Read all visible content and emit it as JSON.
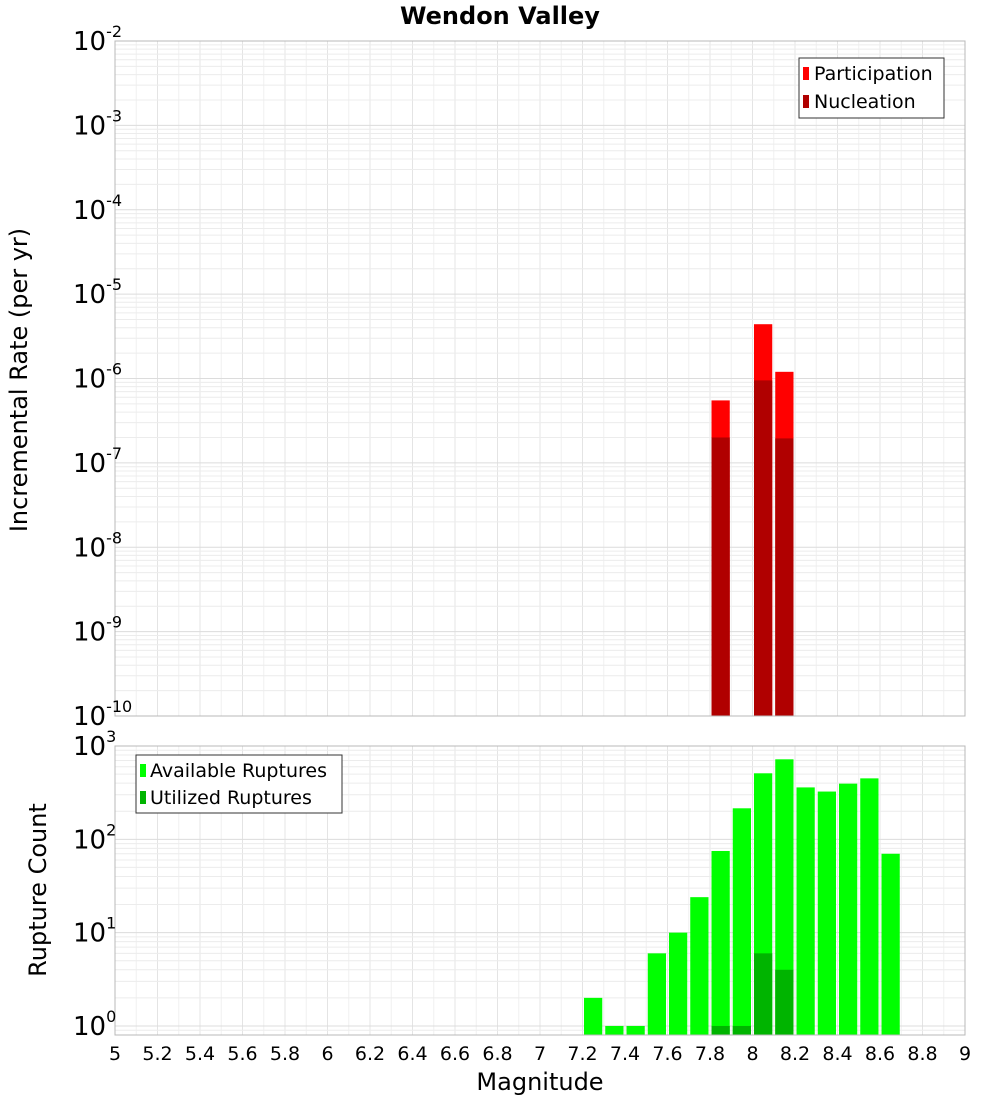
{
  "chart_data": [
    {
      "type": "bar",
      "title": "Wendon Valley",
      "ylabel": "Incremental Rate (per yr)",
      "xlabel": "",
      "yscale": "log",
      "ylim": [
        1e-10,
        0.01
      ],
      "xlim": [
        5,
        9
      ],
      "yticks": [
        {
          "base": "10",
          "exp": "-2"
        },
        {
          "base": "10",
          "exp": "-3"
        },
        {
          "base": "10",
          "exp": "-4"
        },
        {
          "base": "10",
          "exp": "-5"
        },
        {
          "base": "10",
          "exp": "-6"
        },
        {
          "base": "10",
          "exp": "-7"
        },
        {
          "base": "10",
          "exp": "-8"
        },
        {
          "base": "10",
          "exp": "-9"
        },
        {
          "base": "10",
          "exp": "-10"
        }
      ],
      "bar_width": 0.1,
      "legend_position": "top-right",
      "series": [
        {
          "name": "Participation",
          "color": "#ff0000",
          "x": [
            7.85,
            8.05,
            8.15
          ],
          "values": [
            5.5e-07,
            4.4e-06,
            1.2e-06
          ]
        },
        {
          "name": "Nucleation",
          "color": "#b00000",
          "x": [
            7.85,
            8.05,
            8.15
          ],
          "values": [
            2e-07,
            9.5e-07,
            1.95e-07
          ]
        }
      ]
    },
    {
      "type": "bar",
      "title": "",
      "ylabel": "Rupture Count",
      "xlabel": "Magnitude",
      "yscale": "log",
      "ylim": [
        0.8,
        1000
      ],
      "xlim": [
        5,
        9
      ],
      "yticks": [
        {
          "base": "10",
          "exp": "3",
          "value": 1000
        },
        {
          "base": "10",
          "exp": "2",
          "value": 100
        },
        {
          "base": "10",
          "exp": "1",
          "value": 10
        },
        {
          "base": "10",
          "exp": "0",
          "value": 1
        }
      ],
      "xticks": [
        "5",
        "5.2",
        "5.4",
        "5.6",
        "5.8",
        "6",
        "6.2",
        "6.4",
        "6.6",
        "6.8",
        "7",
        "7.2",
        "7.4",
        "7.6",
        "7.8",
        "8",
        "8.2",
        "8.4",
        "8.6",
        "8.8",
        "9"
      ],
      "bar_width": 0.1,
      "legend_position": "top-left",
      "series": [
        {
          "name": "Available Ruptures",
          "color": "#00ff00",
          "x": [
            7.25,
            7.35,
            7.45,
            7.55,
            7.65,
            7.75,
            7.85,
            7.95,
            8.05,
            8.15,
            8.25,
            8.35,
            8.45,
            8.55,
            8.65
          ],
          "values": [
            2,
            1,
            1,
            6,
            10,
            24,
            75,
            215,
            510,
            720,
            360,
            325,
            395,
            450,
            70
          ]
        },
        {
          "name": "Utilized Ruptures",
          "color": "#00b400",
          "x": [
            7.85,
            7.95,
            8.05,
            8.15
          ],
          "values": [
            1,
            1,
            6,
            4
          ]
        }
      ]
    }
  ]
}
